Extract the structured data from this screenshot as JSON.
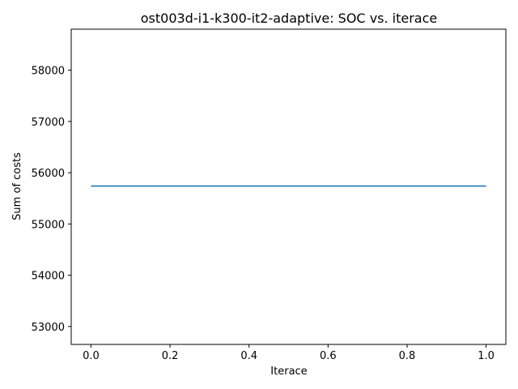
{
  "chart_data": {
    "type": "line",
    "title": "ost003d-i1-k300-it2-adaptive: SOC vs. iterace",
    "xlabel": "Iterace",
    "ylabel": "Sum of costs",
    "xlim": [
      -0.05,
      1.05
    ],
    "ylim": [
      52650,
      58800
    ],
    "x_ticks": [
      0.0,
      0.2,
      0.4,
      0.6,
      0.8,
      1.0
    ],
    "x_tick_labels": [
      "0.0",
      "0.2",
      "0.4",
      "0.6",
      "0.8",
      "1.0"
    ],
    "y_ticks": [
      53000,
      54000,
      55000,
      56000,
      57000,
      58000
    ],
    "y_tick_labels": [
      "53000",
      "54000",
      "55000",
      "56000",
      "57000",
      "58000"
    ],
    "grid": false,
    "series": [
      {
        "color": "#1f77b4",
        "x": [
          0,
          1
        ],
        "y": [
          55740,
          55740
        ]
      }
    ]
  }
}
